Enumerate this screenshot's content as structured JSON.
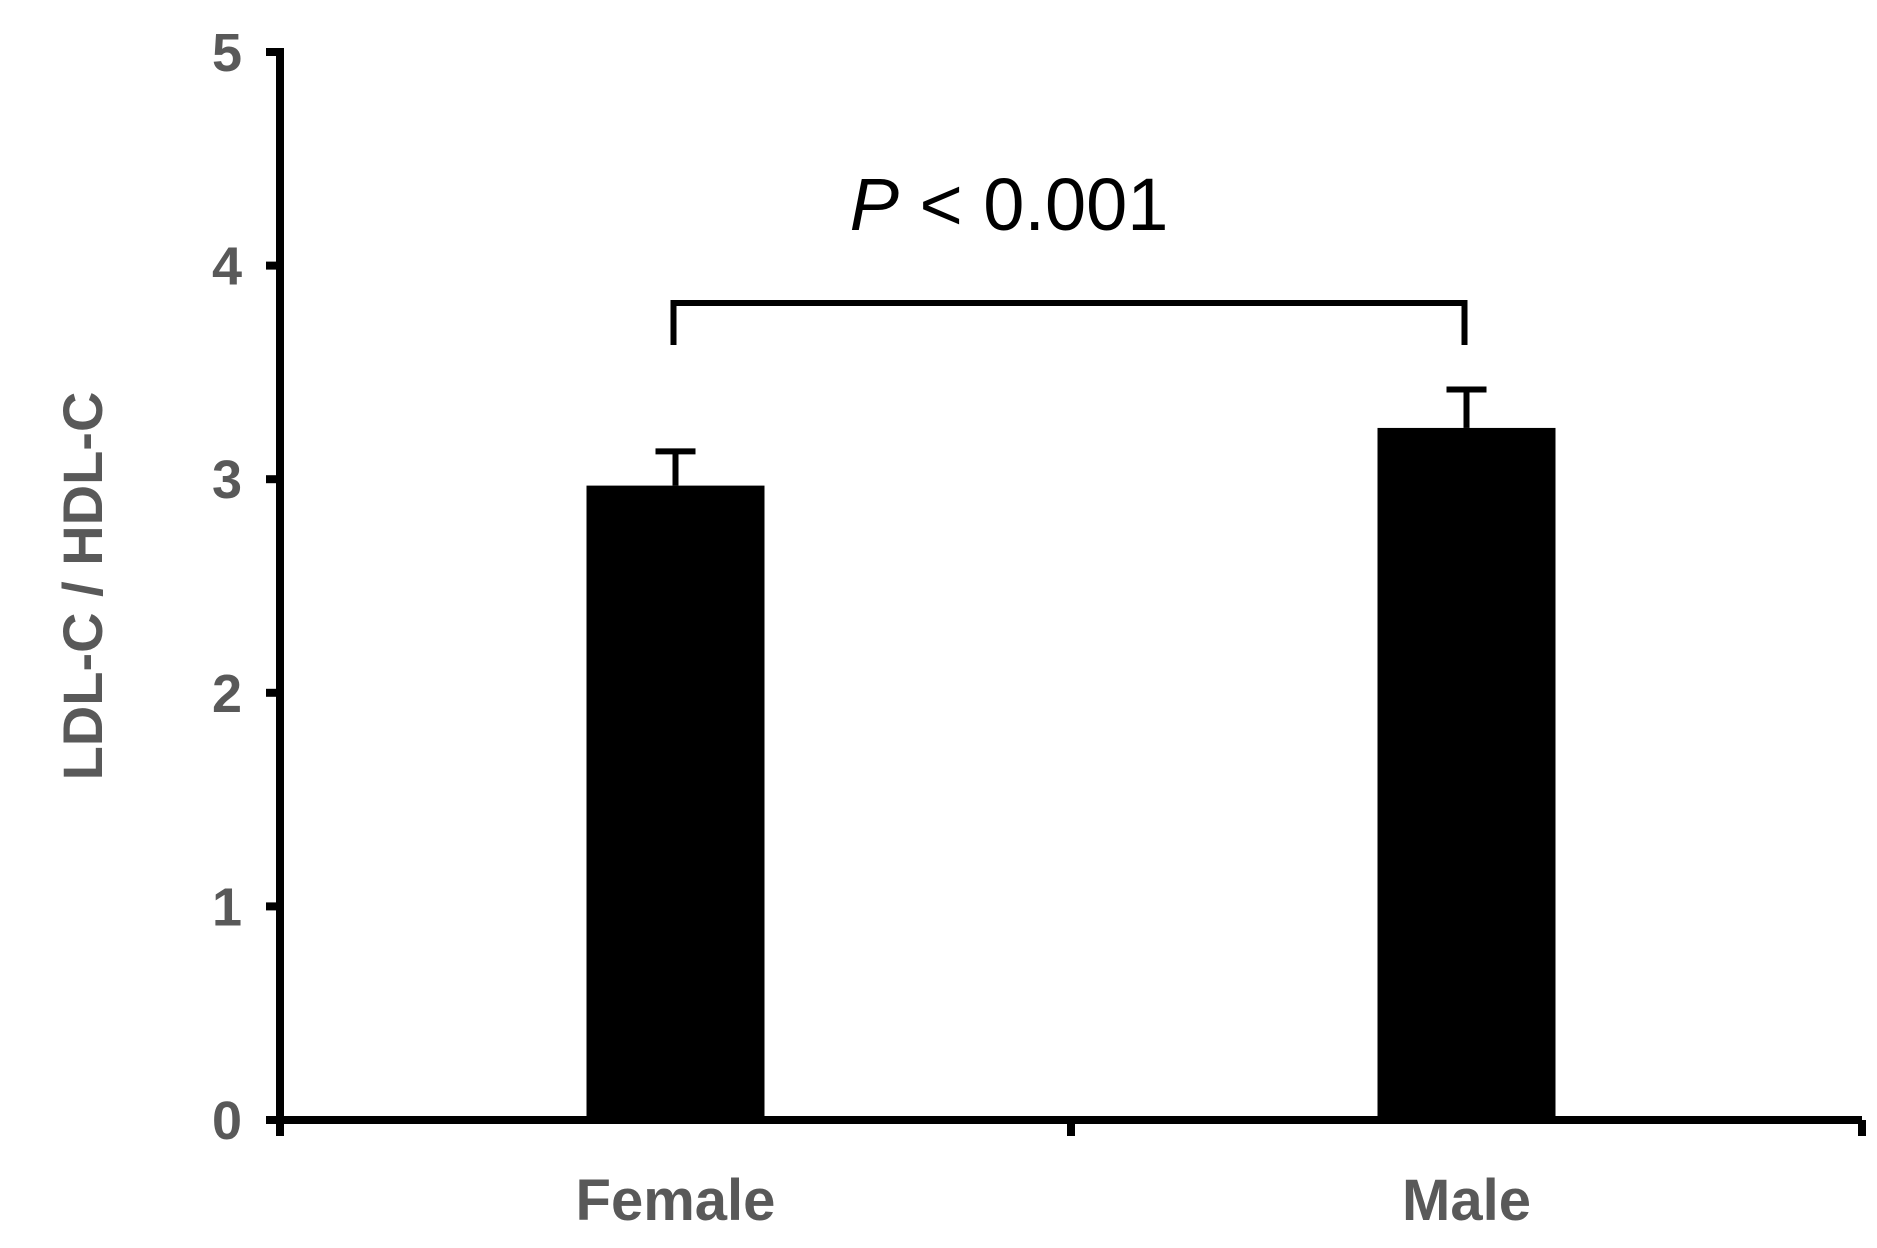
{
  "chart_data": {
    "type": "bar",
    "categories": [
      "Female",
      "Male"
    ],
    "values": [
      2.97,
      3.24
    ],
    "error": [
      0.16,
      0.18
    ],
    "ylabel": "LDL-C / HDL-C",
    "ylim": [
      0,
      5
    ],
    "yticks": [
      "0",
      "1",
      "2",
      "3",
      "4",
      "5"
    ],
    "grid": false,
    "bar_color": "#000000",
    "annotation": {
      "p_symbol": "P",
      "p_rest": " < 0.001",
      "between": [
        "Female",
        "Male"
      ]
    }
  }
}
